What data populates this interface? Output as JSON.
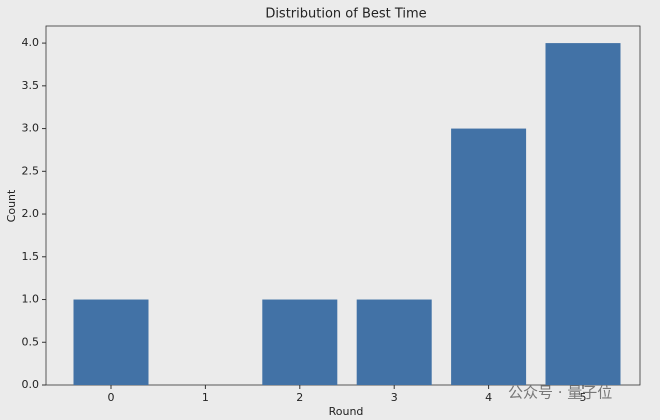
{
  "chart_data": {
    "type": "bar",
    "title": "Distribution of Best Time",
    "x_label": "Round",
    "y_label": "Count",
    "categories": [
      "0",
      "1",
      "2",
      "3",
      "4",
      "5"
    ],
    "values": [
      1,
      0,
      1,
      1,
      3,
      4
    ],
    "color": "#4272a6",
    "ylim": [
      0,
      4.2
    ],
    "yticks": [
      {
        "value": 0,
        "label": "0.0"
      },
      {
        "value": 0.5,
        "label": "0.5"
      },
      {
        "value": 1,
        "label": "1.0"
      },
      {
        "value": 1.5,
        "label": "1.5"
      },
      {
        "value": 2,
        "label": "2.0"
      },
      {
        "value": 2.5,
        "label": "2.5"
      },
      {
        "value": 3,
        "label": "3.0"
      },
      {
        "value": 3.5,
        "label": "3.5"
      },
      {
        "value": 4,
        "label": "4.0"
      }
    ],
    "grid": false,
    "watermark": "公众号 · 量子位"
  }
}
